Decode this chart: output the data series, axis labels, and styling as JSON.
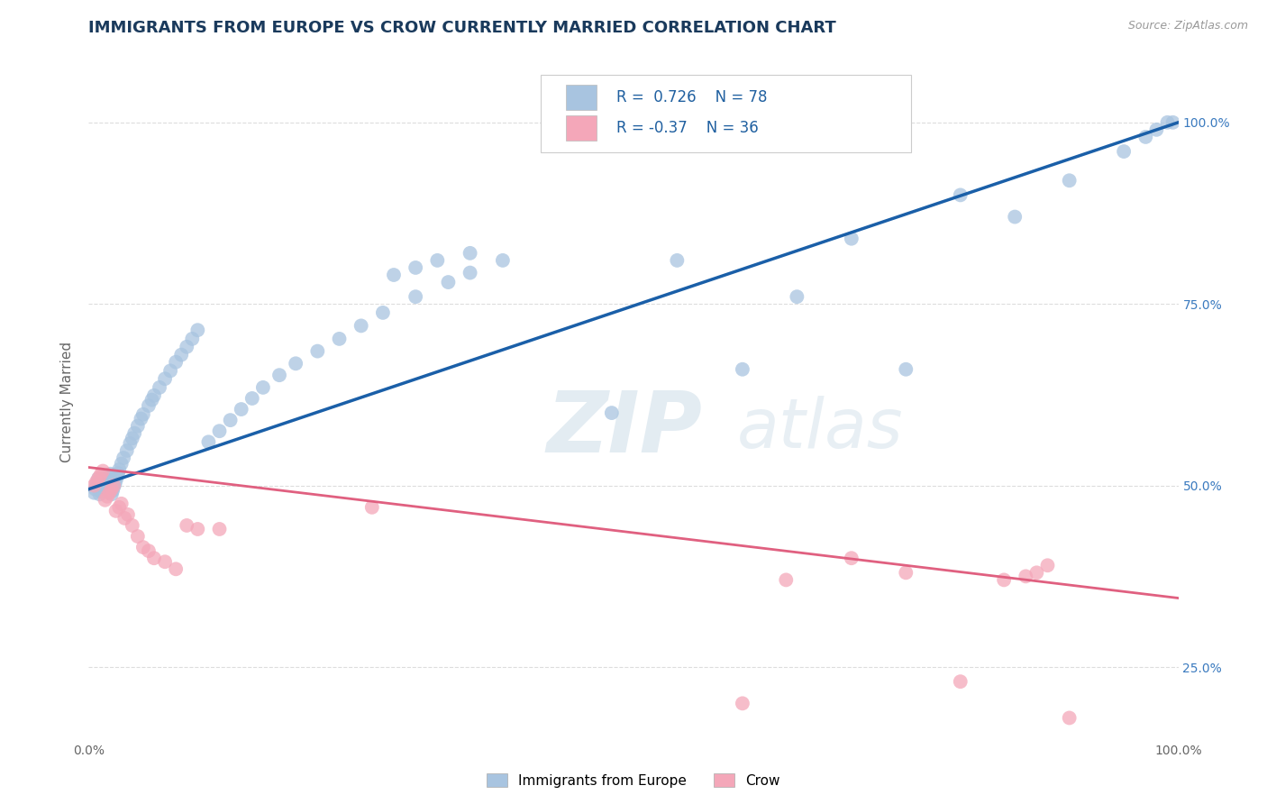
{
  "title": "IMMIGRANTS FROM EUROPE VS CROW CURRENTLY MARRIED CORRELATION CHART",
  "source_text": "Source: ZipAtlas.com",
  "ylabel": "Currently Married",
  "legend_labels": [
    "Immigrants from Europe",
    "Crow"
  ],
  "r_blue": 0.726,
  "n_blue": 78,
  "r_pink": -0.37,
  "n_pink": 36,
  "blue_color": "#a8c4e0",
  "pink_color": "#f4a7b9",
  "blue_line_color": "#1a5fa8",
  "pink_line_color": "#e06080",
  "watermark_zip": "ZIP",
  "watermark_atlas": "atlas",
  "title_color": "#1a3a5c",
  "title_fontsize": 13,
  "axis_label_color": "#666666",
  "tick_label_color_x": "#666666",
  "tick_label_color_y": "#3a7abf",
  "background_color": "#ffffff",
  "grid_color": "#dddddd",
  "xlim": [
    0,
    1
  ],
  "ylim": [
    0.15,
    1.08
  ],
  "blue_line_start_y": 0.495,
  "blue_line_end_y": 1.0,
  "pink_line_start_y": 0.525,
  "pink_line_end_y": 0.345,
  "blue_x": [
    0.005,
    0.006,
    0.007,
    0.008,
    0.009,
    0.01,
    0.011,
    0.012,
    0.013,
    0.014,
    0.015,
    0.016,
    0.017,
    0.018,
    0.019,
    0.02,
    0.021,
    0.022,
    0.023,
    0.024,
    0.025,
    0.026,
    0.027,
    0.028,
    0.03,
    0.032,
    0.035,
    0.038,
    0.04,
    0.042,
    0.045,
    0.048,
    0.05,
    0.055,
    0.058,
    0.06,
    0.065,
    0.07,
    0.075,
    0.08,
    0.085,
    0.09,
    0.095,
    0.1,
    0.11,
    0.12,
    0.13,
    0.14,
    0.15,
    0.16,
    0.175,
    0.19,
    0.21,
    0.23,
    0.25,
    0.27,
    0.3,
    0.33,
    0.35,
    0.38,
    0.28,
    0.3,
    0.32,
    0.35,
    0.48,
    0.54,
    0.6,
    0.65,
    0.7,
    0.75,
    0.8,
    0.85,
    0.9,
    0.95,
    0.97,
    0.98,
    0.99,
    0.995
  ],
  "blue_y": [
    0.49,
    0.495,
    0.5,
    0.505,
    0.51,
    0.488,
    0.492,
    0.498,
    0.503,
    0.508,
    0.512,
    0.496,
    0.501,
    0.506,
    0.511,
    0.516,
    0.488,
    0.493,
    0.498,
    0.502,
    0.507,
    0.512,
    0.517,
    0.522,
    0.53,
    0.538,
    0.548,
    0.558,
    0.565,
    0.572,
    0.582,
    0.592,
    0.598,
    0.61,
    0.618,
    0.624,
    0.635,
    0.647,
    0.658,
    0.67,
    0.68,
    0.691,
    0.702,
    0.714,
    0.56,
    0.575,
    0.59,
    0.605,
    0.62,
    0.635,
    0.652,
    0.668,
    0.685,
    0.702,
    0.72,
    0.738,
    0.76,
    0.78,
    0.793,
    0.81,
    0.79,
    0.8,
    0.81,
    0.82,
    0.6,
    0.81,
    0.66,
    0.76,
    0.84,
    0.66,
    0.9,
    0.87,
    0.92,
    0.96,
    0.98,
    0.99,
    1.0,
    1.0
  ],
  "pink_x": [
    0.005,
    0.007,
    0.009,
    0.011,
    0.013,
    0.015,
    0.017,
    0.019,
    0.021,
    0.023,
    0.025,
    0.028,
    0.03,
    0.033,
    0.036,
    0.04,
    0.045,
    0.05,
    0.055,
    0.06,
    0.07,
    0.08,
    0.09,
    0.1,
    0.12,
    0.26,
    0.6,
    0.64,
    0.7,
    0.75,
    0.8,
    0.84,
    0.86,
    0.87,
    0.88,
    0.9
  ],
  "pink_y": [
    0.5,
    0.505,
    0.51,
    0.515,
    0.52,
    0.48,
    0.485,
    0.49,
    0.495,
    0.5,
    0.465,
    0.47,
    0.475,
    0.455,
    0.46,
    0.445,
    0.43,
    0.415,
    0.41,
    0.4,
    0.395,
    0.385,
    0.445,
    0.44,
    0.44,
    0.47,
    0.2,
    0.37,
    0.4,
    0.38,
    0.23,
    0.37,
    0.375,
    0.38,
    0.39,
    0.18
  ]
}
